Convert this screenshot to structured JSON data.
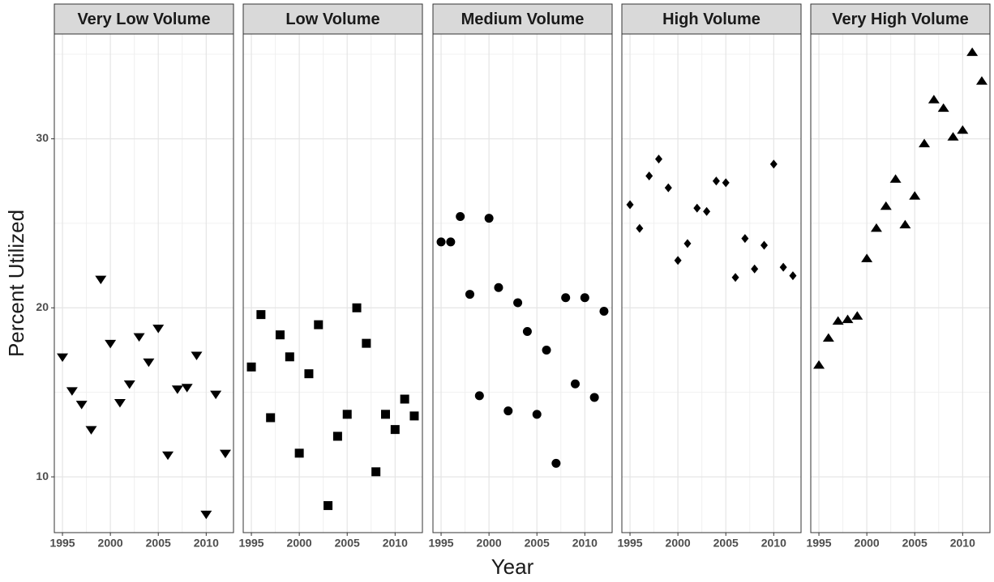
{
  "xlabel": "Year",
  "ylabel": "Percent Utilized",
  "chart_data": [
    {
      "type": "scatter",
      "title": "Very Low Volume",
      "marker": "triangle-down",
      "color": "#000000",
      "grid": true,
      "x": [
        1995,
        1996,
        1997,
        1998,
        1999,
        2000,
        2001,
        2002,
        2003,
        2004,
        2005,
        2006,
        2007,
        2008,
        2009,
        2010,
        2011,
        2012
      ],
      "values": [
        17.1,
        15.1,
        14.3,
        12.8,
        21.7,
        17.9,
        14.4,
        15.5,
        18.3,
        16.8,
        18.8,
        11.3,
        15.2,
        15.3,
        17.2,
        7.8,
        14.9,
        11.4
      ],
      "xlim": [
        1994.15,
        2012.85
      ],
      "xticks": [
        1995,
        2000,
        2005,
        2010
      ],
      "xminor": [
        1997.5,
        2002.5,
        2007.5
      ],
      "ylim": [
        6.7,
        36.2
      ],
      "yticks": [
        10,
        20,
        30
      ],
      "yminor": [
        15,
        25,
        35
      ]
    },
    {
      "type": "scatter",
      "title": "Low Volume",
      "marker": "square",
      "color": "#000000",
      "grid": true,
      "x": [
        1995,
        1996,
        1997,
        1998,
        1999,
        2000,
        2001,
        2002,
        2003,
        2004,
        2005,
        2006,
        2007,
        2008,
        2009,
        2010,
        2011,
        2012
      ],
      "values": [
        16.5,
        19.6,
        13.5,
        18.4,
        17.1,
        11.4,
        16.1,
        19.0,
        8.3,
        12.4,
        13.7,
        20.0,
        17.9,
        10.3,
        13.7,
        12.8,
        14.6,
        13.6
      ],
      "xlim": [
        1994.15,
        2012.85
      ],
      "xticks": [
        1995,
        2000,
        2005,
        2010
      ],
      "xminor": [
        1997.5,
        2002.5,
        2007.5
      ],
      "ylim": [
        6.7,
        36.2
      ],
      "yticks": [
        10,
        20,
        30
      ],
      "yminor": [
        15,
        25,
        35
      ]
    },
    {
      "type": "scatter",
      "title": "Medium Volume",
      "marker": "circle",
      "color": "#000000",
      "grid": true,
      "x": [
        1995,
        1996,
        1997,
        1998,
        1999,
        2000,
        2001,
        2002,
        2003,
        2004,
        2005,
        2006,
        2007,
        2008,
        2009,
        2010,
        2011,
        2012
      ],
      "values": [
        23.9,
        23.9,
        25.4,
        20.8,
        14.8,
        25.3,
        21.2,
        13.9,
        20.3,
        18.6,
        13.7,
        17.5,
        10.8,
        20.6,
        15.5,
        20.6,
        14.7,
        19.8
      ],
      "xlim": [
        1994.15,
        2012.85
      ],
      "xticks": [
        1995,
        2000,
        2005,
        2010
      ],
      "xminor": [
        1997.5,
        2002.5,
        2007.5
      ],
      "ylim": [
        6.7,
        36.2
      ],
      "yticks": [
        10,
        20,
        30
      ],
      "yminor": [
        15,
        25,
        35
      ]
    },
    {
      "type": "scatter",
      "title": "High Volume",
      "marker": "diamond",
      "color": "#000000",
      "grid": true,
      "x": [
        1995,
        1996,
        1997,
        1998,
        1999,
        2000,
        2001,
        2002,
        2003,
        2004,
        2005,
        2006,
        2007,
        2008,
        2009,
        2010,
        2011,
        2012
      ],
      "values": [
        26.1,
        24.7,
        27.8,
        28.8,
        27.1,
        22.8,
        23.8,
        25.9,
        25.7,
        27.5,
        27.4,
        21.8,
        24.1,
        22.3,
        23.7,
        28.5,
        22.4,
        21.9
      ],
      "xlim": [
        1994.15,
        2012.85
      ],
      "xticks": [
        1995,
        2000,
        2005,
        2010
      ],
      "xminor": [
        1997.5,
        2002.5,
        2007.5
      ],
      "ylim": [
        6.7,
        36.2
      ],
      "yticks": [
        10,
        20,
        30
      ],
      "yminor": [
        15,
        25,
        35
      ]
    },
    {
      "type": "scatter",
      "title": "Very High Volume",
      "marker": "triangle-up",
      "color": "#000000",
      "grid": true,
      "x": [
        1995,
        1996,
        1997,
        1998,
        1999,
        2000,
        2001,
        2002,
        2003,
        2004,
        2005,
        2006,
        2007,
        2008,
        2009,
        2010,
        2011,
        2012
      ],
      "values": [
        16.6,
        18.2,
        19.2,
        19.3,
        19.5,
        22.9,
        24.7,
        26.0,
        27.6,
        24.9,
        26.6,
        29.7,
        32.3,
        31.8,
        30.1,
        30.5,
        35.1,
        33.4
      ],
      "xlim": [
        1994.15,
        2012.85
      ],
      "xticks": [
        1995,
        2000,
        2005,
        2010
      ],
      "xminor": [
        1997.5,
        2002.5,
        2007.5
      ],
      "ylim": [
        6.7,
        36.2
      ],
      "yticks": [
        10,
        20,
        30
      ],
      "yminor": [
        15,
        25,
        35
      ]
    }
  ]
}
